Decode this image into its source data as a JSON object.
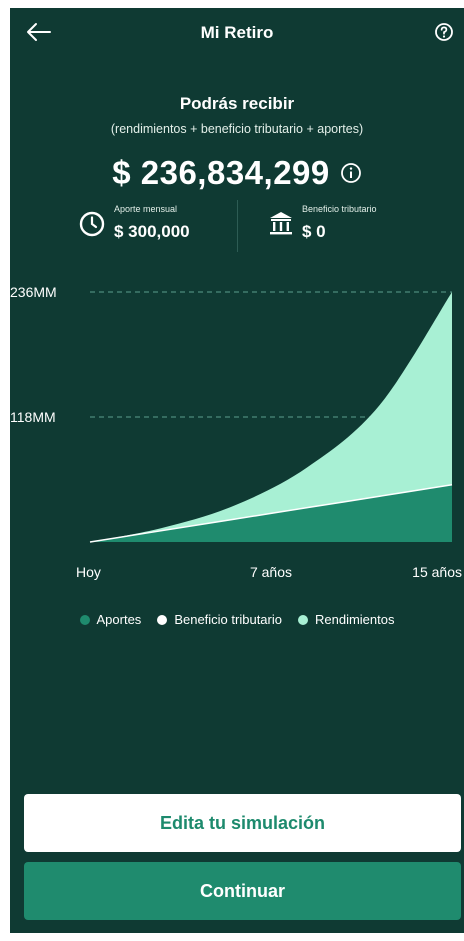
{
  "header": {
    "title": "Mi Retiro"
  },
  "summary": {
    "title": "Podrás recibir",
    "subtitle": "(rendimientos + beneficio tributario + aportes)",
    "amount": "$ 236,834,299"
  },
  "stats": {
    "monthly": {
      "label": "Aporte mensual",
      "value": "$ 300,000",
      "icon": "clock-icon"
    },
    "tax": {
      "label": "Beneficio tributario",
      "value": "$ 0",
      "icon": "bank-icon"
    }
  },
  "chart_data": {
    "type": "area",
    "x": [
      0,
      3,
      6,
      9,
      12,
      15
    ],
    "xlabels": [
      "Hoy",
      "7 años",
      "15 años"
    ],
    "ylabels": [
      "236MM",
      "118MM"
    ],
    "ylim": [
      0,
      236
    ],
    "series": [
      {
        "name": "Aportes",
        "values": [
          0,
          10.8,
          21.6,
          32.4,
          43.2,
          54
        ],
        "color": "#1f8b6e"
      },
      {
        "name": "Beneficio tributario",
        "values": [
          0,
          0,
          0,
          0,
          0,
          0
        ],
        "color": "#ffffff"
      },
      {
        "name": "Rendimientos",
        "values": [
          0,
          2.5,
          13,
          38,
          86,
          182
        ],
        "color": "#a8f0d4"
      }
    ],
    "grid": true
  },
  "legend": [
    {
      "label": "Aportes",
      "color": "#1f8b6e"
    },
    {
      "label": "Beneficio tributario",
      "color": "#ffffff"
    },
    {
      "label": "Rendimientos",
      "color": "#a8f0d4"
    }
  ],
  "buttons": {
    "edit": "Edita tu simulación",
    "continue": "Continuar"
  }
}
